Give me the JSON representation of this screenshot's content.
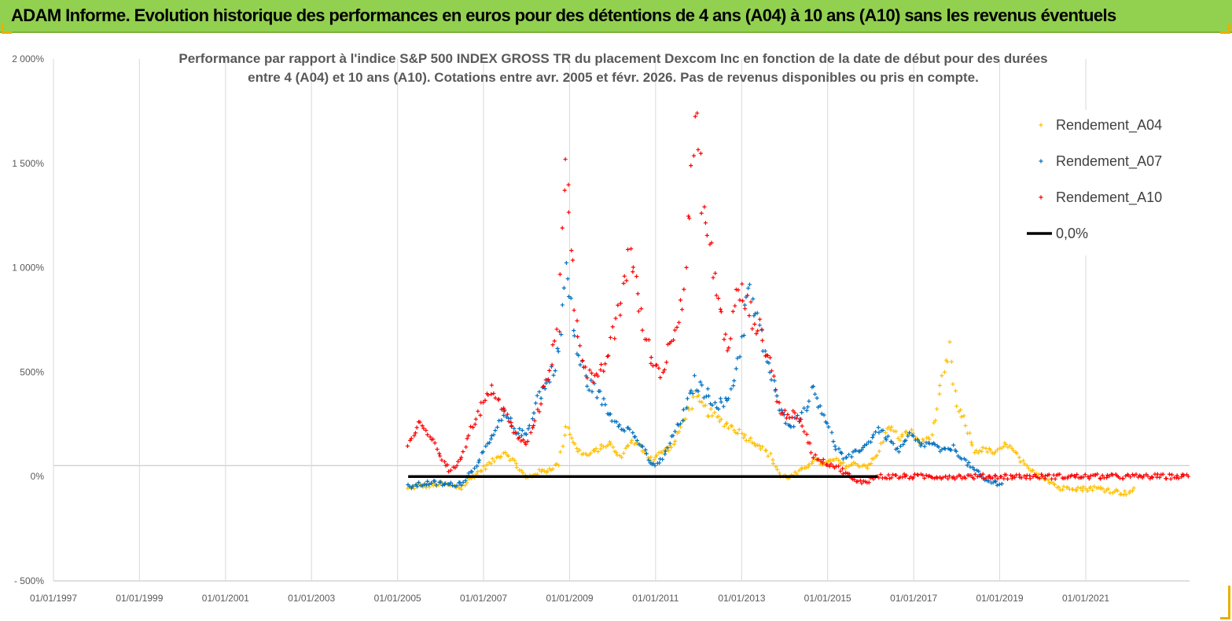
{
  "banner": {
    "title": "ADAM Informe. Evolution historique des performances en euros pour des détentions de 4 ans (A04) à 10 ans (A10) sans les revenus éventuels"
  },
  "colors": {
    "banner_bg": "#92d050",
    "a04": "#ffc000",
    "a07": "#0070c0",
    "a10": "#ff0000",
    "zero": "#000000",
    "grid": "#d9d9d9"
  },
  "chart_data": {
    "type": "scatter",
    "title_lines": [
      "Performance par rapport à l'indice S&P 500 INDEX GROSS TR  du placement Dexcom Inc en fonction de la date de début pour des durées",
      "entre 4 (A04) et 10 ans (A10). Cotations entre avr. 2005 et févr. 2026. Pas de revenus disponibles ou pris en compte."
    ],
    "xlabel": "",
    "ylabel": "",
    "x_range": [
      "1997-01-01",
      "2023-06-01"
    ],
    "y_range": [
      -500,
      2000
    ],
    "y_ticks": [
      {
        "value": 2000,
        "label": "2 000%"
      },
      {
        "value": 1500,
        "label": "1 500%"
      },
      {
        "value": 1000,
        "label": "1 000%"
      },
      {
        "value": 500,
        "label": "500%"
      },
      {
        "value": 0,
        "label": "0%"
      },
      {
        "value": -500,
        "label": "- 500%"
      }
    ],
    "x_ticks": [
      {
        "date": "1997-01-01",
        "label": "01/01/1997"
      },
      {
        "date": "1999-01-01",
        "label": "01/01/1999"
      },
      {
        "date": "2001-01-01",
        "label": "01/01/2001"
      },
      {
        "date": "2003-01-01",
        "label": "01/01/2003"
      },
      {
        "date": "2005-01-01",
        "label": "01/01/2005"
      },
      {
        "date": "2007-01-01",
        "label": "01/01/2007"
      },
      {
        "date": "2009-01-01",
        "label": "01/01/2009"
      },
      {
        "date": "2011-01-01",
        "label": "01/01/2011"
      },
      {
        "date": "2013-01-01",
        "label": "01/01/2013"
      },
      {
        "date": "2015-01-01",
        "label": "01/01/2015"
      },
      {
        "date": "2017-01-01",
        "label": "01/01/2017"
      },
      {
        "date": "2019-01-01",
        "label": "01/01/2019"
      },
      {
        "date": "2021-01-01",
        "label": "01/01/2021"
      }
    ],
    "grid": "vertical",
    "legend_position": "top-right",
    "legend": [
      {
        "label": "Rendement_A04",
        "marker": "plus",
        "color": "#ffc000"
      },
      {
        "label": "Rendement_A07",
        "marker": "plus",
        "color": "#0070c0"
      },
      {
        "label": "Rendement_A10",
        "marker": "plus",
        "color": "#ff0000"
      },
      {
        "label": "0,0%",
        "marker": "line",
        "color": "#000000"
      }
    ],
    "series": [
      {
        "name": "Rendement_A04",
        "color": "#ffc000",
        "points": [
          [
            "2005-04-01",
            -60
          ],
          [
            "2005-07-01",
            -40
          ],
          [
            "2005-10-01",
            -45
          ],
          [
            "2006-01-01",
            -35
          ],
          [
            "2006-04-01",
            -45
          ],
          [
            "2006-07-01",
            -55
          ],
          [
            "2006-10-01",
            0
          ],
          [
            "2007-01-01",
            40
          ],
          [
            "2007-04-01",
            80
          ],
          [
            "2007-07-01",
            120
          ],
          [
            "2007-10-01",
            60
          ],
          [
            "2008-01-01",
            -10
          ],
          [
            "2008-04-01",
            20
          ],
          [
            "2008-07-01",
            30
          ],
          [
            "2008-10-01",
            60
          ],
          [
            "2008-12-01",
            250
          ],
          [
            "2009-03-01",
            130
          ],
          [
            "2009-06-01",
            100
          ],
          [
            "2009-09-01",
            130
          ],
          [
            "2009-12-01",
            160
          ],
          [
            "2010-03-01",
            90
          ],
          [
            "2010-06-01",
            170
          ],
          [
            "2010-09-01",
            140
          ],
          [
            "2010-12-01",
            80
          ],
          [
            "2011-03-01",
            120
          ],
          [
            "2011-06-01",
            150
          ],
          [
            "2011-09-01",
            280
          ],
          [
            "2011-12-01",
            380
          ],
          [
            "2012-03-01",
            320
          ],
          [
            "2012-06-01",
            280
          ],
          [
            "2012-09-01",
            250
          ],
          [
            "2012-12-01",
            220
          ],
          [
            "2013-03-01",
            180
          ],
          [
            "2013-06-01",
            150
          ],
          [
            "2013-09-01",
            100
          ],
          [
            "2013-12-01",
            0
          ],
          [
            "2014-03-01",
            0
          ],
          [
            "2014-06-01",
            30
          ],
          [
            "2014-09-01",
            80
          ],
          [
            "2014-12-01",
            60
          ],
          [
            "2015-03-01",
            80
          ],
          [
            "2015-06-01",
            50
          ],
          [
            "2015-09-01",
            60
          ],
          [
            "2015-12-01",
            50
          ],
          [
            "2016-03-01",
            100
          ],
          [
            "2016-06-01",
            250
          ],
          [
            "2016-09-01",
            180
          ],
          [
            "2016-12-01",
            220
          ],
          [
            "2017-03-01",
            160
          ],
          [
            "2017-06-01",
            200
          ],
          [
            "2017-09-01",
            450
          ],
          [
            "2017-11-01",
            600
          ],
          [
            "2018-01-01",
            330
          ],
          [
            "2018-03-01",
            270
          ],
          [
            "2018-06-01",
            120
          ],
          [
            "2018-09-01",
            130
          ],
          [
            "2018-12-01",
            110
          ],
          [
            "2019-03-01",
            160
          ],
          [
            "2019-06-01",
            100
          ],
          [
            "2019-09-01",
            30
          ],
          [
            "2019-12-01",
            10
          ],
          [
            "2020-03-01",
            -20
          ],
          [
            "2020-06-01",
            -60
          ],
          [
            "2020-09-01",
            -50
          ],
          [
            "2020-12-01",
            -60
          ],
          [
            "2021-03-01",
            -55
          ],
          [
            "2021-06-01",
            -60
          ],
          [
            "2021-09-01",
            -70
          ],
          [
            "2021-12-01",
            -80
          ],
          [
            "2022-03-01",
            -60
          ]
        ]
      },
      {
        "name": "Rendement_A07",
        "color": "#0070c0",
        "points": [
          [
            "2005-04-01",
            -50
          ],
          [
            "2005-07-01",
            -40
          ],
          [
            "2005-10-01",
            -30
          ],
          [
            "2006-01-01",
            -35
          ],
          [
            "2006-04-01",
            -40
          ],
          [
            "2006-07-01",
            -30
          ],
          [
            "2006-10-01",
            30
          ],
          [
            "2007-01-01",
            120
          ],
          [
            "2007-04-01",
            200
          ],
          [
            "2007-07-01",
            300
          ],
          [
            "2007-10-01",
            220
          ],
          [
            "2008-01-01",
            200
          ],
          [
            "2008-04-01",
            380
          ],
          [
            "2008-07-01",
            450
          ],
          [
            "2008-10-01",
            600
          ],
          [
            "2008-12-01",
            1000
          ],
          [
            "2009-03-01",
            600
          ],
          [
            "2009-06-01",
            450
          ],
          [
            "2009-09-01",
            400
          ],
          [
            "2009-12-01",
            300
          ],
          [
            "2010-03-01",
            250
          ],
          [
            "2010-06-01",
            220
          ],
          [
            "2010-09-01",
            150
          ],
          [
            "2010-12-01",
            50
          ],
          [
            "2011-03-01",
            80
          ],
          [
            "2011-06-01",
            200
          ],
          [
            "2011-09-01",
            300
          ],
          [
            "2011-12-01",
            450
          ],
          [
            "2012-03-01",
            400
          ],
          [
            "2012-06-01",
            350
          ],
          [
            "2012-09-01",
            350
          ],
          [
            "2012-12-01",
            550
          ],
          [
            "2013-03-01",
            900
          ],
          [
            "2013-06-01",
            700
          ],
          [
            "2013-09-01",
            500
          ],
          [
            "2013-12-01",
            300
          ],
          [
            "2014-03-01",
            250
          ],
          [
            "2014-06-01",
            300
          ],
          [
            "2014-09-01",
            420
          ],
          [
            "2014-12-01",
            300
          ],
          [
            "2015-03-01",
            150
          ],
          [
            "2015-06-01",
            80
          ],
          [
            "2015-09-01",
            120
          ],
          [
            "2015-12-01",
            150
          ],
          [
            "2016-03-01",
            230
          ],
          [
            "2016-06-01",
            180
          ],
          [
            "2016-09-01",
            120
          ],
          [
            "2016-12-01",
            200
          ],
          [
            "2017-03-01",
            150
          ],
          [
            "2017-06-01",
            160
          ],
          [
            "2017-09-01",
            120
          ],
          [
            "2017-12-01",
            140
          ],
          [
            "2018-03-01",
            80
          ],
          [
            "2018-06-01",
            30
          ],
          [
            "2018-09-01",
            -20
          ],
          [
            "2018-12-01",
            -30
          ],
          [
            "2019-02-01",
            -30
          ]
        ]
      },
      {
        "name": "Rendement_A10",
        "color": "#ff0000",
        "points": [
          [
            "2005-04-01",
            150
          ],
          [
            "2005-07-01",
            250
          ],
          [
            "2005-10-01",
            200
          ],
          [
            "2006-01-01",
            100
          ],
          [
            "2006-04-01",
            20
          ],
          [
            "2006-07-01",
            100
          ],
          [
            "2006-10-01",
            250
          ],
          [
            "2007-01-01",
            350
          ],
          [
            "2007-04-01",
            420
          ],
          [
            "2007-07-01",
            300
          ],
          [
            "2007-10-01",
            200
          ],
          [
            "2008-01-01",
            150
          ],
          [
            "2008-04-01",
            300
          ],
          [
            "2008-07-01",
            500
          ],
          [
            "2008-10-01",
            700
          ],
          [
            "2008-12-01",
            1600
          ],
          [
            "2009-03-01",
            700
          ],
          [
            "2009-06-01",
            500
          ],
          [
            "2009-09-01",
            450
          ],
          [
            "2009-12-01",
            600
          ],
          [
            "2010-03-01",
            800
          ],
          [
            "2010-06-01",
            1100
          ],
          [
            "2010-09-01",
            750
          ],
          [
            "2010-12-01",
            550
          ],
          [
            "2011-03-01",
            500
          ],
          [
            "2011-06-01",
            700
          ],
          [
            "2011-09-01",
            900
          ],
          [
            "2011-12-01",
            1700
          ],
          [
            "2012-03-01",
            1200
          ],
          [
            "2012-06-01",
            900
          ],
          [
            "2012-09-01",
            600
          ],
          [
            "2012-12-01",
            900
          ],
          [
            "2013-03-01",
            800
          ],
          [
            "2013-06-01",
            700
          ],
          [
            "2013-09-01",
            550
          ],
          [
            "2013-12-01",
            300
          ],
          [
            "2014-03-01",
            300
          ],
          [
            "2014-06-01",
            250
          ],
          [
            "2014-09-01",
            100
          ],
          [
            "2014-12-01",
            70
          ],
          [
            "2015-03-01",
            50
          ],
          [
            "2015-06-01",
            20
          ],
          [
            "2015-09-01",
            -30
          ],
          [
            "2015-12-01",
            -20
          ],
          [
            "2016-03-01",
            0
          ],
          [
            "2016-06-01",
            0
          ],
          [
            "2017-01-01",
            0
          ],
          [
            "2018-01-01",
            0
          ],
          [
            "2019-01-01",
            0
          ],
          [
            "2020-01-01",
            0
          ],
          [
            "2021-01-01",
            0
          ],
          [
            "2022-01-01",
            0
          ],
          [
            "2023-06-01",
            0
          ]
        ]
      },
      {
        "name": "0,0%",
        "color": "#000000",
        "type": "line",
        "points": [
          [
            "2005-04-01",
            0
          ],
          [
            "2016-03-01",
            0
          ]
        ]
      }
    ]
  }
}
